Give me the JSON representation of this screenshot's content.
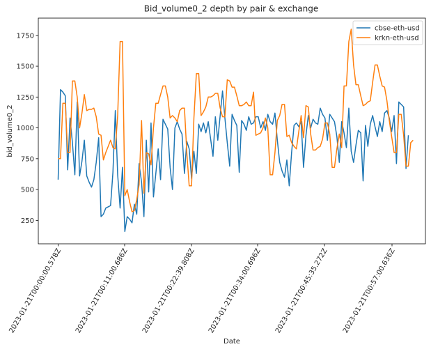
{
  "chart_data": {
    "type": "line",
    "title": "Bid_volume0_2 depth by pair & exchange",
    "xlabel": "Date",
    "ylabel": "bid_volume0_2",
    "x_tick_labels": [
      "2023-01-21T00:00:00.578Z",
      "2023-01-21T00:11:00.686Z",
      "2023-01-21T00:22:39.808Z",
      "2023-01-21T00:34:00.696Z",
      "2023-01-21T00:45:35.272Z",
      "2023-01-21T00:57:00.636Z"
    ],
    "y_ticks": [
      250,
      500,
      750,
      1000,
      1250,
      1500,
      1750
    ],
    "ylim": [
      60,
      1890
    ],
    "legend_position": "top-right",
    "grid": false,
    "series": [
      {
        "name": "cbse-eth-usd",
        "color": "#1f77b4",
        "values": [
          580,
          1310,
          1290,
          1260,
          660,
          1080,
          880,
          620,
          1210,
          610,
          730,
          900,
          610,
          560,
          520,
          580,
          720,
          920,
          280,
          300,
          350,
          360,
          370,
          640,
          1140,
          620,
          350,
          680,
          160,
          280,
          260,
          230,
          380,
          300,
          710,
          560,
          280,
          900,
          480,
          1040,
          440,
          630,
          830,
          580,
          1070,
          1030,
          990,
          680,
          500,
          1000,
          1050,
          990,
          950,
          630,
          890,
          830,
          590,
          810,
          630,
          1030,
          970,
          1040,
          960,
          1050,
          910,
          770,
          1090,
          900,
          1100,
          1300,
          1080,
          880,
          690,
          1110,
          1060,
          1020,
          640,
          1060,
          1030,
          980,
          1090,
          1030,
          1040,
          1090,
          1090,
          1000,
          1050,
          980,
          1110,
          1050,
          1030,
          1120,
          900,
          720,
          650,
          600,
          740,
          530,
          800,
          1020,
          1040,
          1010,
          1050,
          680,
          940,
          1100,
          1000,
          1070,
          1040,
          1030,
          1160,
          1110,
          1080,
          900,
          1110,
          1080,
          1050,
          930,
          720,
          1050,
          960,
          840,
          1160,
          810,
          720,
          860,
          980,
          960,
          570,
          1020,
          850,
          1030,
          1100,
          1010,
          930,
          1050,
          970,
          1120,
          1140,
          1080,
          970,
          1100,
          710,
          1210,
          1190,
          1170,
          670,
          940
        ]
      },
      {
        "name": "krkn-eth-usd",
        "color": "#ff7f0e",
        "values": [
          750,
          750,
          1200,
          1200,
          800,
          800,
          1380,
          1380,
          1250,
          1000,
          1120,
          1270,
          1140,
          1150,
          1150,
          1160,
          1090,
          950,
          940,
          740,
          800,
          850,
          900,
          840,
          830,
          1100,
          1700,
          1700,
          450,
          500,
          400,
          320,
          330,
          420,
          540,
          1060,
          470,
          800,
          790,
          700,
          1000,
          1200,
          1200,
          1270,
          1340,
          1340,
          1250,
          1080,
          1100,
          1080,
          1050,
          1140,
          1160,
          1160,
          800,
          530,
          530,
          1080,
          1440,
          1440,
          1100,
          1130,
          1170,
          1250,
          1250,
          1260,
          1280,
          1280,
          1160,
          1090,
          1090,
          1390,
          1380,
          1330,
          1330,
          1260,
          1180,
          1180,
          1190,
          1210,
          1180,
          1180,
          1290,
          940,
          950,
          960,
          1000,
          1080,
          1000,
          620,
          620,
          800,
          1060,
          1100,
          1190,
          1190,
          930,
          940,
          880,
          850,
          830,
          970,
          1100,
          920,
          1180,
          1170,
          950,
          820,
          820,
          840,
          850,
          910,
          1040,
          1040,
          950,
          680,
          680,
          830,
          950,
          840,
          1340,
          1340,
          1700,
          1800,
          1510,
          1350,
          1350,
          1260,
          1180,
          1190,
          1210,
          1220,
          1370,
          1510,
          1510,
          1420,
          1340,
          1330,
          1220,
          1060,
          930,
          800,
          800,
          1110,
          1110,
          940,
          690,
          690,
          880,
          900
        ]
      }
    ]
  }
}
